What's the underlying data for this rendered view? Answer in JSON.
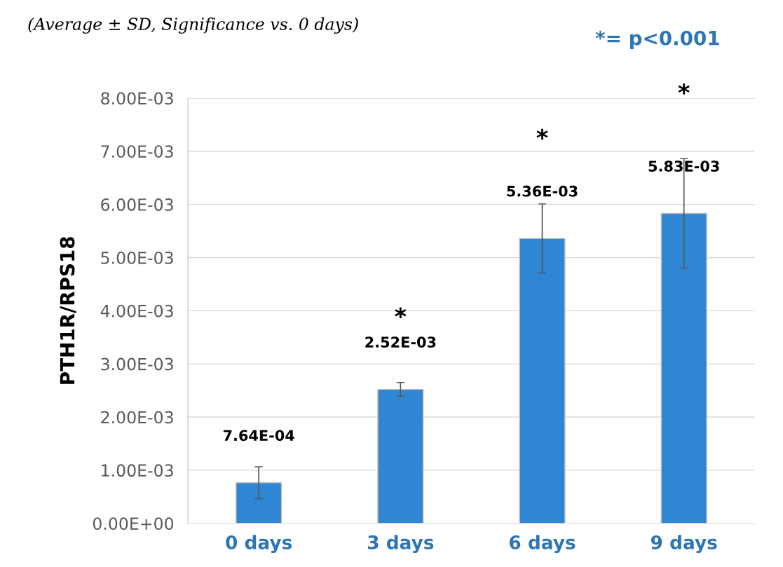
{
  "chart_data": {
    "type": "bar",
    "subtitle": "(Average ± SD, Significance vs. 0 days)",
    "ylabel": "PTH1R/RPS18",
    "categories": [
      "0 days",
      "3 days",
      "6 days",
      "9 days"
    ],
    "values": [
      0.000764,
      0.00252,
      0.00536,
      0.00583
    ],
    "errors": [
      0.0003,
      0.00013,
      0.00065,
      0.00103
    ],
    "value_labels": [
      "7.64E-04",
      "2.52E-03",
      "5.36E-03",
      "5.83E-03"
    ],
    "color": "#2e86d4",
    "ylim": [
      0,
      0.008
    ],
    "yticks": [
      {
        "value": 0,
        "label": "0.00E+00"
      },
      {
        "value": 0.001,
        "label": "1.00E-03"
      },
      {
        "value": 0.002,
        "label": "2.00E-03"
      },
      {
        "value": 0.003,
        "label": "3.00E-03"
      },
      {
        "value": 0.004,
        "label": "4.00E-03"
      },
      {
        "value": 0.005,
        "label": "5.00E-03"
      },
      {
        "value": 0.006,
        "label": "6.00E-03"
      },
      {
        "value": 0.007,
        "label": "7.00E-03"
      },
      {
        "value": 0.008,
        "label": "8.00E-03"
      }
    ],
    "grid": "y",
    "annotations": [
      "*",
      "*",
      "*",
      "*= p<0.001"
    ]
  }
}
